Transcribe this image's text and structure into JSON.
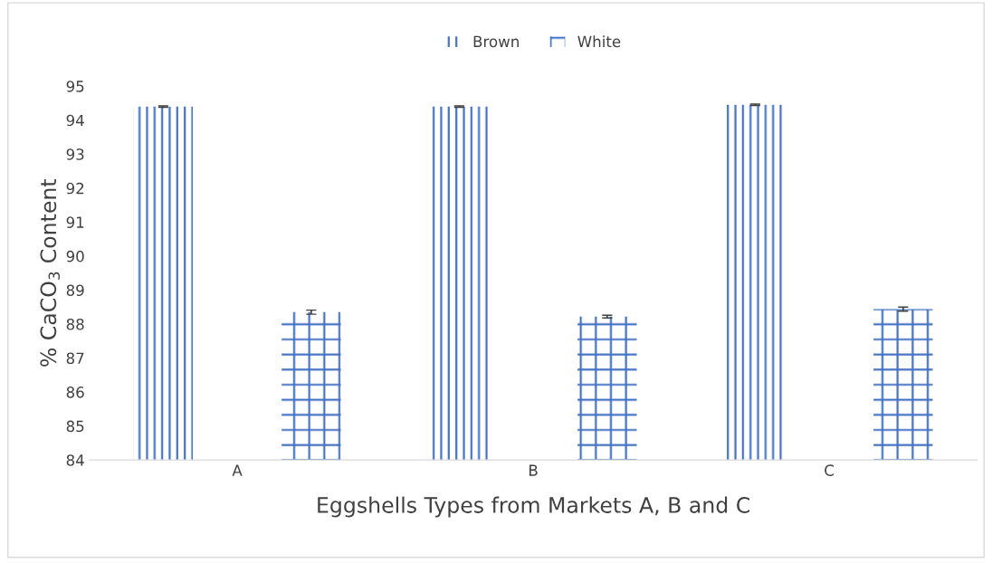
{
  "chart_data": {
    "type": "bar",
    "xlabel": "Eggshells Types from Markets A, B and C",
    "ylabel": "% CaCO$_{3}$ Content",
    "categories": [
      "A",
      "B",
      "C"
    ],
    "series": [
      {
        "name": "Brown",
        "color": "#4472c4",
        "values": [
          94.4,
          94.4,
          94.45
        ],
        "errors": [
          0.02,
          0.02,
          0.02
        ]
      },
      {
        "name": "White",
        "color": "#4472c4",
        "values": [
          88.35,
          88.22,
          88.44
        ],
        "errors": [
          0.06,
          0.04,
          0.06
        ]
      }
    ],
    "ylim": [
      84,
      95
    ],
    "yticks": [
      84,
      85,
      86,
      87,
      88,
      89,
      90,
      91,
      92,
      93,
      94,
      95
    ],
    "grid": false,
    "legend": "top"
  }
}
